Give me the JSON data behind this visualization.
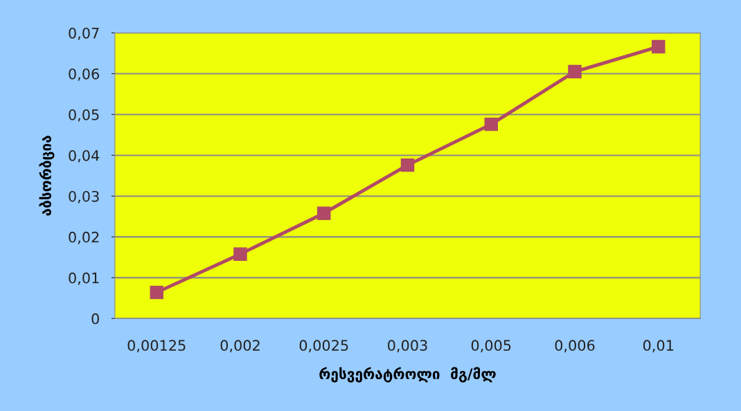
{
  "chart_data": {
    "type": "line",
    "xlabel": "რესვერატროლი  მგ/მლ",
    "ylabel": "აბსორბცია",
    "categories": [
      "0,00125",
      "0,002",
      "0,0025",
      "0,003",
      "0,005",
      "0,006",
      "0,01"
    ],
    "series": [
      {
        "color": "#b04a66",
        "values": [
          0.0064,
          0.0158,
          0.0258,
          0.0376,
          0.0476,
          0.0605,
          0.0666
        ]
      }
    ],
    "ylim": [
      0,
      0.07
    ],
    "yticks": [
      0,
      {
        "value": 0.01,
        "label": "0,01"
      },
      {
        "value": 0.02,
        "label": "0,02"
      },
      {
        "value": 0.03,
        "label": "0,03"
      },
      {
        "value": 0.04,
        "label": "0,04"
      },
      {
        "value": 0.05,
        "label": "0,05"
      },
      {
        "value": 0.06,
        "label": "0,06"
      },
      {
        "value": 0.07,
        "label": "0,07"
      }
    ],
    "grid": "y",
    "marker": "square",
    "line_style": "solid",
    "legend": false
  }
}
